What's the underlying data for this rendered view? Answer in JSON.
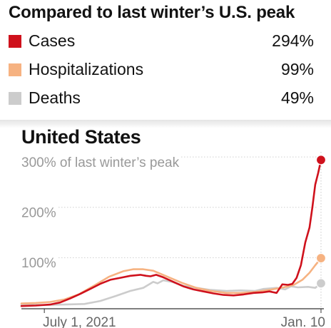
{
  "summary": {
    "title": "Compared to last winter’s U.S. peak",
    "items": [
      {
        "label": "Cases",
        "value": "294%",
        "color": "#cf111c"
      },
      {
        "label": "Hospitalizations",
        "value": "99%",
        "color": "#f6b281"
      },
      {
        "label": "Deaths",
        "value": "49%",
        "color": "#cccccc"
      }
    ]
  },
  "chart_data": {
    "type": "line",
    "title": "United States",
    "y_unit_note": "of last winter’s peak",
    "y_ticks": [
      {
        "value": 100,
        "label": "100%"
      },
      {
        "value": 200,
        "label": "200%"
      },
      {
        "value": 300,
        "label": "300% of last winter’s peak"
      }
    ],
    "x_ticks": [
      {
        "value": "2021-07-01",
        "label": "July 1, 2021"
      },
      {
        "value": "2022-01-10",
        "label": "Jan. 10"
      }
    ],
    "xlim": [
      "2021-06-15",
      "2022-01-12"
    ],
    "ylim": [
      0,
      310
    ],
    "grid": true,
    "series": [
      {
        "name": "Cases",
        "color": "#cf111c",
        "end_value": 294,
        "points": [
          [
            "2021-06-15",
            4
          ],
          [
            "2021-06-25",
            5
          ],
          [
            "2021-07-05",
            7
          ],
          [
            "2021-07-12",
            11
          ],
          [
            "2021-07-19",
            19
          ],
          [
            "2021-07-26",
            28
          ],
          [
            "2021-08-02",
            38
          ],
          [
            "2021-08-09",
            48
          ],
          [
            "2021-08-16",
            56
          ],
          [
            "2021-08-23",
            60
          ],
          [
            "2021-08-30",
            64
          ],
          [
            "2021-09-06",
            66
          ],
          [
            "2021-09-10",
            64
          ],
          [
            "2021-09-13",
            63
          ],
          [
            "2021-09-17",
            66
          ],
          [
            "2021-09-22",
            61
          ],
          [
            "2021-09-29",
            52
          ],
          [
            "2021-10-06",
            43
          ],
          [
            "2021-10-13",
            37
          ],
          [
            "2021-10-20",
            33
          ],
          [
            "2021-10-27",
            29
          ],
          [
            "2021-11-03",
            26
          ],
          [
            "2021-11-10",
            25
          ],
          [
            "2021-11-17",
            27
          ],
          [
            "2021-11-24",
            30
          ],
          [
            "2021-11-30",
            31
          ],
          [
            "2021-12-05",
            33
          ],
          [
            "2021-12-10",
            30
          ],
          [
            "2021-12-14",
            47
          ],
          [
            "2021-12-18",
            46
          ],
          [
            "2021-12-21",
            48
          ],
          [
            "2021-12-24",
            60
          ],
          [
            "2021-12-27",
            85
          ],
          [
            "2021-12-30",
            130
          ],
          [
            "2022-01-02",
            160
          ],
          [
            "2022-01-04",
            200
          ],
          [
            "2022-01-06",
            245
          ],
          [
            "2022-01-08",
            268
          ],
          [
            "2022-01-10",
            294
          ]
        ]
      },
      {
        "name": "Hospitalizations",
        "color": "#f6b281",
        "end_value": 99,
        "points": [
          [
            "2021-06-15",
            9
          ],
          [
            "2021-06-25",
            10
          ],
          [
            "2021-07-05",
            12
          ],
          [
            "2021-07-15",
            17
          ],
          [
            "2021-07-25",
            27
          ],
          [
            "2021-08-05",
            45
          ],
          [
            "2021-08-15",
            62
          ],
          [
            "2021-08-25",
            73
          ],
          [
            "2021-09-01",
            77
          ],
          [
            "2021-09-08",
            77
          ],
          [
            "2021-09-15",
            74
          ],
          [
            "2021-09-25",
            62
          ],
          [
            "2021-10-05",
            50
          ],
          [
            "2021-10-15",
            40
          ],
          [
            "2021-10-25",
            34
          ],
          [
            "2021-11-05",
            30
          ],
          [
            "2021-11-15",
            30
          ],
          [
            "2021-11-25",
            32
          ],
          [
            "2021-12-05",
            36
          ],
          [
            "2021-12-15",
            41
          ],
          [
            "2021-12-22",
            46
          ],
          [
            "2021-12-28",
            56
          ],
          [
            "2022-01-02",
            70
          ],
          [
            "2022-01-06",
            85
          ],
          [
            "2022-01-10",
            99
          ]
        ]
      },
      {
        "name": "Deaths",
        "color": "#cccccc",
        "end_value": 49,
        "points": [
          [
            "2021-06-15",
            7
          ],
          [
            "2021-07-01",
            6
          ],
          [
            "2021-07-15",
            7
          ],
          [
            "2021-07-29",
            8
          ],
          [
            "2021-08-09",
            14
          ],
          [
            "2021-08-20",
            24
          ],
          [
            "2021-08-30",
            34
          ],
          [
            "2021-09-08",
            40
          ],
          [
            "2021-09-15",
            52
          ],
          [
            "2021-09-18",
            49
          ],
          [
            "2021-09-22",
            55
          ],
          [
            "2021-09-28",
            52
          ],
          [
            "2021-10-06",
            44
          ],
          [
            "2021-10-15",
            40
          ],
          [
            "2021-10-25",
            36
          ],
          [
            "2021-11-05",
            34
          ],
          [
            "2021-11-15",
            35
          ],
          [
            "2021-11-25",
            34
          ],
          [
            "2021-12-01",
            38
          ],
          [
            "2021-12-10",
            40
          ],
          [
            "2021-12-16",
            37
          ],
          [
            "2021-12-20",
            43
          ],
          [
            "2021-12-25",
            41
          ],
          [
            "2022-01-01",
            42
          ],
          [
            "2022-01-06",
            40
          ],
          [
            "2022-01-10",
            49
          ]
        ]
      }
    ]
  }
}
